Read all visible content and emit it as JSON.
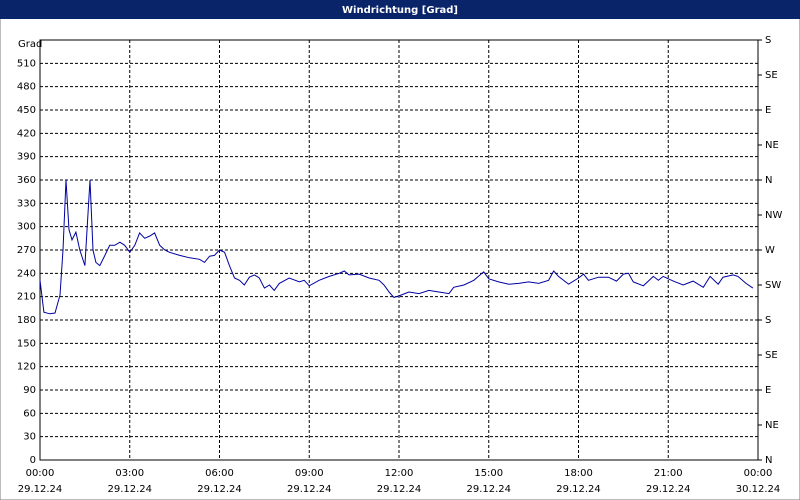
{
  "chart_data": {
    "type": "line",
    "title": "Windrichtung [Grad]",
    "ylabel": "Grad",
    "xlim": [
      0,
      24
    ],
    "xticks": [
      {
        "value": 0,
        "label": "00:00"
      },
      {
        "value": 3,
        "label": "03:00"
      },
      {
        "value": 6,
        "label": "06:00"
      },
      {
        "value": 9,
        "label": "09:00"
      },
      {
        "value": 12,
        "label": "12:00"
      },
      {
        "value": 15,
        "label": "15:00"
      },
      {
        "value": 18,
        "label": "18:00"
      },
      {
        "value": 21,
        "label": "21:00"
      },
      {
        "value": 24,
        "label": "00:00"
      }
    ],
    "xtick_dates": [
      "29.12.24",
      "29.12.24",
      "29.12.24",
      "29.12.24",
      "29.12.24",
      "29.12.24",
      "29.12.24",
      "29.12.24",
      "30.12.24"
    ],
    "ylim": [
      0,
      540
    ],
    "yticks": [
      0,
      30,
      60,
      90,
      120,
      150,
      180,
      210,
      240,
      270,
      300,
      330,
      360,
      390,
      420,
      450,
      480,
      510
    ],
    "y2lim": [
      0,
      540
    ],
    "y2ticks": [
      {
        "value": 0,
        "label": "N"
      },
      {
        "value": 45,
        "label": "NE"
      },
      {
        "value": 90,
        "label": "E"
      },
      {
        "value": 135,
        "label": "SE"
      },
      {
        "value": 180,
        "label": "S"
      },
      {
        "value": 225,
        "label": "SW"
      },
      {
        "value": 270,
        "label": "W"
      },
      {
        "value": 315,
        "label": "NW"
      },
      {
        "value": 360,
        "label": "N"
      },
      {
        "value": 405,
        "label": "NE"
      },
      {
        "value": 450,
        "label": "E"
      },
      {
        "value": 495,
        "label": "SE"
      },
      {
        "value": 540,
        "label": "S"
      }
    ],
    "grid": true,
    "series": [
      {
        "name": "Windrichtung",
        "color": "#0000a0",
        "x": [
          0,
          0.13,
          0.33,
          0.5,
          0.67,
          0.77,
          0.87,
          0.97,
          1.07,
          1.2,
          1.33,
          1.5,
          1.67,
          1.77,
          1.87,
          2.0,
          2.17,
          2.33,
          2.5,
          2.67,
          2.83,
          3.0,
          3.17,
          3.33,
          3.5,
          3.67,
          3.83,
          4.0,
          4.17,
          4.33,
          4.67,
          5.0,
          5.33,
          5.5,
          5.67,
          5.83,
          6.0,
          6.17,
          6.33,
          6.5,
          6.67,
          6.83,
          7.0,
          7.17,
          7.33,
          7.5,
          7.67,
          7.83,
          8.0,
          8.33,
          8.67,
          8.83,
          9.0,
          9.33,
          9.67,
          10.0,
          10.17,
          10.33,
          10.67,
          11.0,
          11.33,
          11.5,
          11.67,
          11.83,
          12.0,
          12.33,
          12.67,
          13.0,
          13.33,
          13.67,
          13.83,
          14.17,
          14.5,
          14.83,
          15.0,
          15.33,
          15.67,
          16.0,
          16.33,
          16.67,
          17.0,
          17.17,
          17.33,
          17.67,
          18.0,
          18.17,
          18.33,
          18.67,
          19.0,
          19.27,
          19.5,
          19.67,
          19.83,
          20.17,
          20.5,
          20.67,
          20.83,
          21.17,
          21.5,
          21.83,
          22.17,
          22.4,
          22.67,
          22.83,
          23.17,
          23.33,
          23.6,
          23.83
        ],
        "values": [
          231,
          190,
          188,
          189,
          212,
          270,
          360,
          296,
          283,
          293,
          270,
          250,
          360,
          270,
          254,
          250,
          263,
          276,
          276,
          280,
          276,
          267,
          276,
          292,
          285,
          288,
          292,
          276,
          270,
          267,
          263,
          260,
          258,
          254,
          262,
          263,
          270,
          267,
          250,
          234,
          231,
          225,
          235,
          238,
          234,
          221,
          225,
          218,
          227,
          234,
          229,
          231,
          224,
          231,
          236,
          240,
          243,
          238,
          239,
          234,
          231,
          225,
          216,
          209,
          211,
          216,
          214,
          218,
          216,
          214,
          222,
          225,
          231,
          242,
          233,
          229,
          226,
          227,
          229,
          227,
          231,
          243,
          236,
          226,
          234,
          239,
          231,
          235,
          235,
          230,
          239,
          240,
          229,
          224,
          236,
          231,
          236,
          230,
          225,
          230,
          222,
          236,
          226,
          235,
          238,
          236,
          227,
          221
        ]
      }
    ]
  }
}
